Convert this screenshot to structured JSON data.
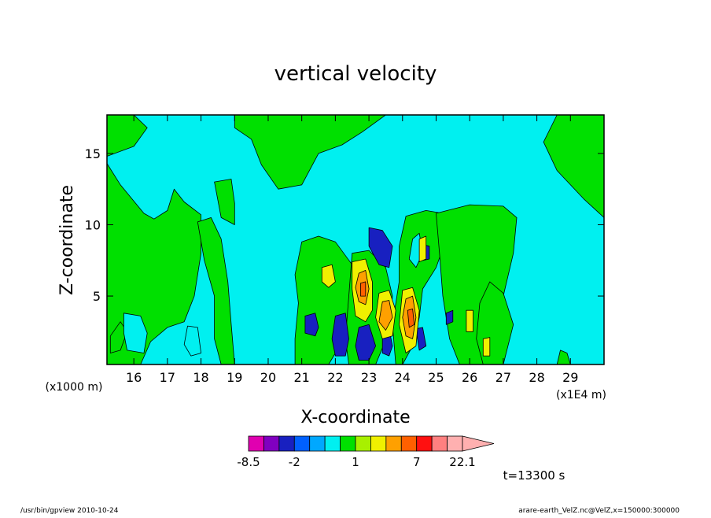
{
  "chart_data": {
    "type": "heatmap",
    "title": "vertical velocity",
    "xlabel": "X-coordinate",
    "ylabel": "Z-coordinate",
    "x_unit_left": "(x1000 m)",
    "x_unit_right": "(x1E4 m)",
    "xlim": [
      15.2,
      30.0
    ],
    "ylim": [
      0.2,
      17.7
    ],
    "x_ticks": [
      16,
      17,
      18,
      19,
      20,
      21,
      22,
      23,
      24,
      25,
      26,
      27,
      28,
      29
    ],
    "x_tick_labels": [
      "16",
      "17",
      "18",
      "19",
      "20",
      "21",
      "22",
      "23",
      "24",
      "25",
      "26",
      "27",
      "28",
      "29"
    ],
    "y_ticks": [
      5,
      10,
      15
    ],
    "y_tick_labels": [
      "5",
      "10",
      "15"
    ],
    "colorbar": {
      "levels": [
        -8.5,
        -5.5,
        -3.5,
        -2,
        -1,
        0,
        0.5,
        1,
        1.5,
        3,
        5,
        7,
        10,
        14,
        22.1
      ],
      "labels": [
        {
          "value": -8.5,
          "text": "-8.5"
        },
        {
          "value": -2,
          "text": "-2"
        },
        {
          "value": 1,
          "text": "1"
        },
        {
          "value": 7,
          "text": "7"
        },
        {
          "value": 22.1,
          "text": "22.1"
        }
      ],
      "colors": [
        "#e000b0",
        "#8000c0",
        "#1820c0",
        "#0060ff",
        "#00a8ff",
        "#00f0f0",
        "#00e000",
        "#a8f000",
        "#f0f000",
        "#ffa000",
        "#ff6000",
        "#ff1010",
        "#ff8080",
        "#ffb0b0"
      ]
    },
    "fill_regions": [
      {
        "color": "#00e000",
        "points": [
          [
            15.2,
            17.7
          ],
          [
            16.0,
            17.7
          ],
          [
            16.4,
            16.8
          ],
          [
            16.0,
            15.5
          ],
          [
            15.2,
            14.8
          ]
        ]
      },
      {
        "color": "#00e000",
        "points": [
          [
            15.2,
            14.3
          ],
          [
            15.6,
            12.8
          ],
          [
            16.3,
            10.8
          ],
          [
            16.6,
            10.4
          ],
          [
            17.0,
            11.0
          ],
          [
            17.2,
            12.5
          ],
          [
            17.5,
            11.6
          ],
          [
            18.0,
            10.7
          ],
          [
            18.0,
            8.0
          ],
          [
            17.8,
            5.0
          ],
          [
            17.5,
            3.2
          ],
          [
            17.0,
            2.8
          ],
          [
            16.5,
            1.8
          ],
          [
            16.2,
            0.2
          ],
          [
            15.2,
            0.2
          ]
        ]
      },
      {
        "color": "#00e000",
        "points": [
          [
            17.9,
            10.2
          ],
          [
            18.1,
            7.5
          ],
          [
            18.4,
            5.0
          ],
          [
            18.4,
            2.0
          ],
          [
            18.6,
            0.2
          ],
          [
            19.0,
            0.2
          ],
          [
            18.9,
            3.0
          ],
          [
            18.8,
            6.0
          ],
          [
            18.6,
            9.0
          ],
          [
            18.3,
            10.5
          ]
        ]
      },
      {
        "color": "#00e000",
        "points": [
          [
            18.4,
            13.0
          ],
          [
            18.9,
            13.2
          ],
          [
            19.0,
            11.5
          ],
          [
            19.0,
            10.0
          ],
          [
            18.6,
            10.5
          ]
        ]
      },
      {
        "color": "#00e000",
        "points": [
          [
            19.0,
            17.7
          ],
          [
            23.5,
            17.7
          ],
          [
            22.8,
            16.5
          ],
          [
            22.2,
            15.6
          ],
          [
            21.5,
            15.0
          ],
          [
            21.0,
            12.8
          ],
          [
            20.3,
            12.5
          ],
          [
            19.8,
            14.2
          ],
          [
            19.5,
            16.0
          ],
          [
            19.0,
            16.8
          ]
        ]
      },
      {
        "color": "#00e000",
        "points": [
          [
            28.6,
            17.7
          ],
          [
            30.0,
            17.7
          ],
          [
            30.0,
            10.5
          ],
          [
            29.4,
            11.8
          ],
          [
            28.6,
            13.8
          ],
          [
            28.2,
            15.8
          ]
        ]
      },
      {
        "color": "#00e000",
        "points": [
          [
            24.1,
            10.6
          ],
          [
            24.7,
            11.0
          ],
          [
            25.2,
            10.8
          ],
          [
            25.3,
            9.0
          ],
          [
            25.0,
            7.0
          ],
          [
            24.6,
            5.5
          ],
          [
            24.5,
            3.5
          ],
          [
            24.3,
            1.5
          ],
          [
            24.0,
            0.2
          ],
          [
            23.8,
            0.2
          ],
          [
            23.7,
            3.0
          ],
          [
            23.9,
            6.0
          ],
          [
            23.9,
            8.5
          ]
        ]
      },
      {
        "color": "#00e000",
        "points": [
          [
            25.0,
            10.8
          ],
          [
            26.0,
            11.4
          ],
          [
            27.0,
            11.3
          ],
          [
            27.4,
            10.5
          ],
          [
            27.3,
            8.0
          ],
          [
            27.0,
            5.0
          ],
          [
            26.8,
            2.0
          ],
          [
            26.5,
            0.2
          ],
          [
            25.7,
            0.2
          ],
          [
            25.4,
            2.0
          ],
          [
            25.2,
            5.0
          ],
          [
            25.1,
            8.0
          ]
        ]
      },
      {
        "color": "#00e000",
        "points": [
          [
            21.0,
            8.8
          ],
          [
            21.5,
            9.2
          ],
          [
            22.0,
            8.8
          ],
          [
            22.5,
            7.2
          ],
          [
            22.6,
            5.0
          ],
          [
            22.4,
            3.0
          ],
          [
            22.0,
            1.0
          ],
          [
            21.8,
            0.2
          ],
          [
            20.8,
            0.2
          ],
          [
            20.8,
            2.0
          ],
          [
            20.9,
            4.5
          ],
          [
            20.8,
            6.5
          ]
        ]
      },
      {
        "color": "#00e000",
        "points": [
          [
            22.5,
            8.0
          ],
          [
            23.0,
            8.2
          ],
          [
            23.5,
            7.0
          ],
          [
            23.7,
            5.0
          ],
          [
            23.6,
            2.5
          ],
          [
            23.2,
            0.2
          ],
          [
            22.4,
            0.2
          ],
          [
            22.3,
            2.0
          ],
          [
            22.4,
            5.0
          ]
        ]
      },
      {
        "color": "#00e000",
        "points": [
          [
            26.6,
            6.0
          ],
          [
            27.0,
            5.2
          ],
          [
            27.3,
            3.0
          ],
          [
            27.0,
            0.2
          ],
          [
            26.4,
            0.2
          ],
          [
            26.2,
            2.0
          ],
          [
            26.3,
            4.5
          ]
        ]
      },
      {
        "color": "#00e000",
        "points": [
          [
            28.7,
            1.2
          ],
          [
            28.9,
            1.0
          ],
          [
            29.0,
            0.2
          ],
          [
            28.6,
            0.2
          ]
        ]
      },
      {
        "color": "#00e000",
        "points": [
          [
            15.3,
            2.2
          ],
          [
            15.6,
            3.2
          ],
          [
            15.8,
            2.5
          ],
          [
            15.6,
            1.2
          ],
          [
            15.3,
            1.0
          ]
        ]
      },
      {
        "color": "#00f0f0",
        "points": [
          [
            15.7,
            3.8
          ],
          [
            16.2,
            3.6
          ],
          [
            16.4,
            2.4
          ],
          [
            16.3,
            1.0
          ],
          [
            15.8,
            1.2
          ],
          [
            15.7,
            2.4
          ]
        ]
      },
      {
        "color": "#00f0f0",
        "points": [
          [
            17.6,
            2.9
          ],
          [
            17.9,
            2.8
          ],
          [
            18.0,
            1.0
          ],
          [
            17.7,
            0.8
          ],
          [
            17.5,
            1.6
          ]
        ]
      },
      {
        "color": "#00f0f0",
        "points": [
          [
            24.3,
            9.0
          ],
          [
            24.5,
            9.4
          ],
          [
            24.6,
            8.0
          ],
          [
            24.4,
            7.0
          ],
          [
            24.2,
            7.6
          ]
        ]
      },
      {
        "color": "#1820c0",
        "points": [
          [
            23.0,
            9.8
          ],
          [
            23.4,
            9.6
          ],
          [
            23.7,
            8.5
          ],
          [
            23.6,
            7.0
          ],
          [
            23.3,
            7.2
          ],
          [
            23.0,
            8.5
          ]
        ]
      },
      {
        "color": "#1820c0",
        "points": [
          [
            24.6,
            8.6
          ],
          [
            24.8,
            8.5
          ],
          [
            24.8,
            7.6
          ],
          [
            24.6,
            7.5
          ]
        ]
      },
      {
        "color": "#1820c0",
        "points": [
          [
            21.1,
            3.6
          ],
          [
            21.4,
            3.8
          ],
          [
            21.5,
            2.8
          ],
          [
            21.4,
            2.2
          ],
          [
            21.1,
            2.4
          ]
        ]
      },
      {
        "color": "#1820c0",
        "points": [
          [
            22.0,
            3.6
          ],
          [
            22.3,
            3.8
          ],
          [
            22.4,
            2.0
          ],
          [
            22.3,
            0.8
          ],
          [
            22.0,
            0.8
          ],
          [
            21.9,
            2.0
          ]
        ]
      },
      {
        "color": "#1820c0",
        "points": [
          [
            22.7,
            2.8
          ],
          [
            23.0,
            3.0
          ],
          [
            23.2,
            1.5
          ],
          [
            23.0,
            0.5
          ],
          [
            22.7,
            0.5
          ],
          [
            22.6,
            1.5
          ]
        ]
      },
      {
        "color": "#1820c0",
        "points": [
          [
            23.4,
            2.5
          ],
          [
            23.6,
            2.7
          ],
          [
            23.7,
            1.5
          ],
          [
            23.6,
            0.8
          ],
          [
            23.4,
            1.0
          ]
        ]
      },
      {
        "color": "#1820c0",
        "points": [
          [
            24.4,
            2.7
          ],
          [
            24.6,
            2.8
          ],
          [
            24.7,
            1.5
          ],
          [
            24.5,
            1.2
          ]
        ]
      },
      {
        "color": "#1820c0",
        "points": [
          [
            25.3,
            3.8
          ],
          [
            25.5,
            4.0
          ],
          [
            25.5,
            3.2
          ],
          [
            25.3,
            3.0
          ]
        ]
      },
      {
        "color": "#f0f000",
        "points": [
          [
            22.5,
            7.4
          ],
          [
            22.9,
            7.6
          ],
          [
            23.1,
            6.0
          ],
          [
            23.1,
            4.0
          ],
          [
            22.9,
            3.2
          ],
          [
            22.6,
            3.6
          ],
          [
            22.5,
            5.5
          ]
        ]
      },
      {
        "color": "#f0f000",
        "points": [
          [
            23.3,
            5.2
          ],
          [
            23.6,
            5.4
          ],
          [
            23.8,
            4.0
          ],
          [
            23.7,
            2.2
          ],
          [
            23.4,
            2.0
          ],
          [
            23.2,
            3.5
          ]
        ]
      },
      {
        "color": "#f0f000",
        "points": [
          [
            24.0,
            5.4
          ],
          [
            24.3,
            5.6
          ],
          [
            24.5,
            4.0
          ],
          [
            24.4,
            1.5
          ],
          [
            24.1,
            1.0
          ],
          [
            23.9,
            3.0
          ]
        ]
      },
      {
        "color": "#f0f000",
        "points": [
          [
            21.6,
            7.0
          ],
          [
            21.9,
            7.2
          ],
          [
            22.0,
            6.0
          ],
          [
            21.8,
            5.6
          ],
          [
            21.6,
            6.0
          ]
        ]
      },
      {
        "color": "#f0f000",
        "points": [
          [
            24.5,
            9.0
          ],
          [
            24.7,
            9.2
          ],
          [
            24.7,
            7.6
          ],
          [
            24.5,
            7.4
          ]
        ]
      },
      {
        "color": "#f0f000",
        "points": [
          [
            26.4,
            2.0
          ],
          [
            26.6,
            2.1
          ],
          [
            26.6,
            0.8
          ],
          [
            26.4,
            0.8
          ]
        ]
      },
      {
        "color": "#f0f000",
        "points": [
          [
            25.9,
            4.0
          ],
          [
            26.1,
            4.0
          ],
          [
            26.1,
            2.5
          ],
          [
            25.9,
            2.5
          ]
        ]
      },
      {
        "color": "#ffa000",
        "points": [
          [
            22.7,
            6.6
          ],
          [
            22.9,
            6.8
          ],
          [
            23.0,
            5.5
          ],
          [
            22.9,
            4.4
          ],
          [
            22.7,
            4.6
          ],
          [
            22.6,
            5.6
          ]
        ]
      },
      {
        "color": "#ffa000",
        "points": [
          [
            23.4,
            4.6
          ],
          [
            23.6,
            4.7
          ],
          [
            23.7,
            3.5
          ],
          [
            23.5,
            2.6
          ],
          [
            23.3,
            3.2
          ]
        ]
      },
      {
        "color": "#ffa000",
        "points": [
          [
            24.1,
            4.8
          ],
          [
            24.3,
            5.0
          ],
          [
            24.4,
            3.5
          ],
          [
            24.3,
            2.0
          ],
          [
            24.1,
            2.2
          ],
          [
            24.0,
            3.5
          ]
        ]
      },
      {
        "color": "#ff6000",
        "points": [
          [
            24.15,
            4.0
          ],
          [
            24.3,
            4.1
          ],
          [
            24.35,
            3.0
          ],
          [
            24.2,
            2.8
          ]
        ]
      },
      {
        "color": "#ff6000",
        "points": [
          [
            22.75,
            5.9
          ],
          [
            22.9,
            6.0
          ],
          [
            22.9,
            5.0
          ],
          [
            22.75,
            5.0
          ]
        ]
      }
    ]
  },
  "time_label": "t=13300 s",
  "footer_left": "/usr/bin/gpview   2010-10-24",
  "footer_right": "arare-earth_VelZ.nc@VelZ,x=150000:300000"
}
